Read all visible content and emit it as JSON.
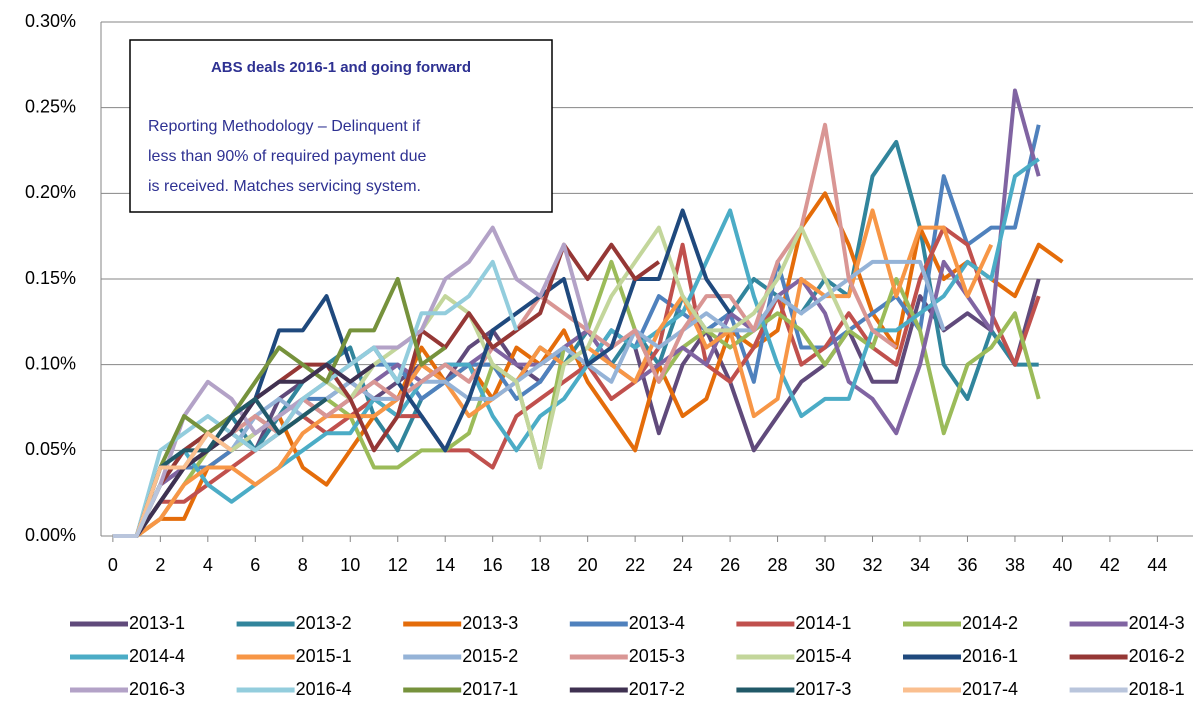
{
  "chart_data": {
    "type": "line",
    "annotation": {
      "title": "ABS deals 2016-1 and going forward",
      "lines": [
        "Reporting Methodology – Delinquent if",
        "less than 90% of required payment due",
        "is received. Matches servicing system."
      ]
    },
    "x": [
      0,
      1,
      2,
      3,
      4,
      5,
      6,
      7,
      8,
      9,
      10,
      11,
      12,
      13,
      14,
      15,
      16,
      17,
      18,
      19,
      20,
      21,
      22,
      23,
      24,
      25,
      26,
      27,
      28,
      29,
      30,
      31,
      32,
      33,
      34,
      35,
      36,
      37,
      38,
      39,
      40
    ],
    "xlim": [
      -0.5,
      45.5
    ],
    "xticks": [
      0,
      2,
      4,
      6,
      8,
      10,
      12,
      14,
      16,
      18,
      20,
      22,
      24,
      26,
      28,
      30,
      32,
      34,
      36,
      38,
      40,
      42,
      44
    ],
    "ylim": [
      0,
      0.3
    ],
    "yticks": [
      {
        "value": 0,
        "label": "0.00%"
      },
      {
        "value": 0.05,
        "label": "0.05%"
      },
      {
        "value": 0.1,
        "label": "0.10%"
      },
      {
        "value": 0.15,
        "label": "0.15%"
      },
      {
        "value": 0.2,
        "label": "0.20%"
      },
      {
        "value": 0.25,
        "label": "0.25%"
      },
      {
        "value": 0.3,
        "label": "0.30%"
      }
    ],
    "grid": true,
    "series": [
      {
        "name": "2013-1",
        "color": "#604a7b",
        "values": [
          0,
          0,
          0.03,
          0.04,
          0.05,
          0.06,
          0.05,
          0.08,
          0.09,
          0.1,
          0.09,
          0.08,
          0.09,
          0.1,
          0.09,
          0.11,
          0.12,
          0.1,
          0.09,
          0.11,
          0.1,
          0.12,
          0.11,
          0.06,
          0.1,
          0.12,
          0.09,
          0.05,
          0.07,
          0.09,
          0.1,
          0.12,
          0.09,
          0.09,
          0.14,
          0.12,
          0.13,
          0.12,
          0.1,
          0.15,
          null
        ]
      },
      {
        "name": "2013-2",
        "color": "#31859c",
        "values": [
          0,
          0,
          0.03,
          0.05,
          0.06,
          0.07,
          0.05,
          0.07,
          0.09,
          0.1,
          0.11,
          0.07,
          0.05,
          0.08,
          0.09,
          0.1,
          0.1,
          0.09,
          0.11,
          0.1,
          0.12,
          0.1,
          0.12,
          0.1,
          0.14,
          0.12,
          0.13,
          0.15,
          0.14,
          0.13,
          0.15,
          0.14,
          0.21,
          0.23,
          0.18,
          0.1,
          0.08,
          0.12,
          0.1,
          0.1,
          null
        ]
      },
      {
        "name": "2013-3",
        "color": "#e46c0a",
        "values": [
          0,
          0,
          0.01,
          0.01,
          0.04,
          0.05,
          0.06,
          0.07,
          0.04,
          0.03,
          0.05,
          0.07,
          0.08,
          0.11,
          0.09,
          0.1,
          0.08,
          0.11,
          0.1,
          0.12,
          0.09,
          0.07,
          0.05,
          0.1,
          0.07,
          0.08,
          0.12,
          0.11,
          0.12,
          0.18,
          0.2,
          0.17,
          0.13,
          0.11,
          0.18,
          0.15,
          0.16,
          0.15,
          0.14,
          0.17,
          0.16
        ]
      },
      {
        "name": "2013-4",
        "color": "#4f81bd",
        "values": [
          0,
          0,
          0.02,
          0.04,
          0.04,
          0.05,
          0.07,
          0.06,
          0.08,
          0.08,
          0.09,
          0.1,
          0.1,
          0.08,
          0.09,
          0.1,
          0.1,
          0.08,
          0.09,
          0.11,
          0.1,
          0.12,
          0.11,
          0.14,
          0.13,
          0.12,
          0.13,
          0.09,
          0.16,
          0.11,
          0.11,
          0.12,
          0.13,
          0.14,
          0.12,
          0.21,
          0.17,
          0.18,
          0.18,
          0.24,
          null
        ]
      },
      {
        "name": "2014-1",
        "color": "#c0504d",
        "values": [
          0,
          0,
          0.02,
          0.02,
          0.03,
          0.04,
          0.05,
          0.06,
          0.07,
          0.06,
          0.07,
          0.08,
          0.07,
          0.07,
          0.05,
          0.05,
          0.04,
          0.07,
          0.08,
          0.09,
          0.1,
          0.08,
          0.09,
          0.11,
          0.17,
          0.1,
          0.09,
          0.11,
          0.14,
          0.1,
          0.11,
          0.13,
          0.11,
          0.1,
          0.15,
          0.18,
          0.17,
          0.13,
          0.1,
          0.14,
          null
        ]
      },
      {
        "name": "2014-2",
        "color": "#9bbb59",
        "values": [
          0,
          0,
          0.01,
          0.03,
          0.05,
          0.06,
          0.07,
          0.06,
          0.07,
          0.08,
          0.07,
          0.04,
          0.04,
          0.05,
          0.05,
          0.06,
          0.1,
          0.09,
          0.04,
          0.11,
          0.12,
          0.16,
          0.12,
          0.09,
          0.11,
          0.12,
          0.11,
          0.12,
          0.13,
          0.12,
          0.1,
          0.12,
          0.11,
          0.15,
          0.12,
          0.06,
          0.1,
          0.11,
          0.13,
          0.08,
          null
        ]
      },
      {
        "name": "2014-3",
        "color": "#8064a2",
        "values": [
          0,
          0,
          0.03,
          0.04,
          0.06,
          0.05,
          0.06,
          0.07,
          0.08,
          0.07,
          0.08,
          0.09,
          0.1,
          0.09,
          0.1,
          0.1,
          0.11,
          0.1,
          0.1,
          0.11,
          0.12,
          0.1,
          0.09,
          0.1,
          0.11,
          0.1,
          0.13,
          0.12,
          0.14,
          0.15,
          0.13,
          0.09,
          0.08,
          0.06,
          0.1,
          0.16,
          0.14,
          0.12,
          0.26,
          0.21,
          null
        ]
      },
      {
        "name": "2014-4",
        "color": "#4bacc6",
        "values": [
          0,
          0,
          0.04,
          0.05,
          0.03,
          0.02,
          0.03,
          0.04,
          0.05,
          0.06,
          0.06,
          0.08,
          0.07,
          0.09,
          0.1,
          0.1,
          0.07,
          0.05,
          0.07,
          0.08,
          0.1,
          0.12,
          0.11,
          0.12,
          0.13,
          0.16,
          0.19,
          0.14,
          0.1,
          0.07,
          0.08,
          0.08,
          0.12,
          0.12,
          0.13,
          0.14,
          0.16,
          0.15,
          0.21,
          0.22,
          null
        ]
      },
      {
        "name": "2015-1",
        "color": "#f79646",
        "values": [
          0,
          0,
          0.01,
          0.03,
          0.04,
          0.04,
          0.03,
          0.04,
          0.06,
          0.07,
          0.07,
          0.07,
          0.08,
          0.1,
          0.09,
          0.07,
          0.08,
          0.09,
          0.11,
          0.1,
          0.11,
          0.1,
          0.09,
          0.12,
          0.14,
          0.11,
          0.12,
          0.07,
          0.08,
          0.15,
          0.14,
          0.14,
          0.19,
          0.14,
          0.18,
          0.18,
          0.14,
          0.17,
          null,
          null,
          null
        ]
      },
      {
        "name": "2015-2",
        "color": "#95b3d7",
        "values": [
          0,
          0,
          0.03,
          0.05,
          0.06,
          0.05,
          0.07,
          0.08,
          0.07,
          0.08,
          0.09,
          0.08,
          0.08,
          0.09,
          0.09,
          0.08,
          0.08,
          0.09,
          0.1,
          0.11,
          0.1,
          0.09,
          0.12,
          0.11,
          0.12,
          0.13,
          0.12,
          0.12,
          0.14,
          0.13,
          0.14,
          0.15,
          0.16,
          0.16,
          0.16,
          0.12,
          null,
          null,
          null,
          null,
          null
        ]
      },
      {
        "name": "2015-3",
        "color": "#d99694",
        "values": [
          0,
          0,
          0.02,
          0.04,
          0.05,
          0.06,
          0.07,
          0.06,
          0.08,
          0.07,
          0.08,
          0.09,
          0.08,
          0.09,
          0.1,
          0.09,
          0.11,
          0.12,
          0.14,
          0.13,
          0.12,
          0.11,
          0.12,
          0.09,
          0.12,
          0.14,
          0.14,
          0.12,
          0.16,
          0.18,
          0.24,
          0.15,
          0.12,
          0.11,
          null,
          null,
          null,
          null,
          null,
          null,
          null
        ]
      },
      {
        "name": "2015-4",
        "color": "#c3d69b",
        "values": [
          0,
          0,
          0.02,
          0.04,
          0.06,
          0.05,
          0.06,
          0.07,
          0.08,
          0.09,
          0.08,
          0.1,
          0.11,
          0.12,
          0.14,
          0.13,
          0.1,
          0.09,
          0.04,
          0.1,
          0.11,
          0.14,
          0.16,
          0.18,
          0.14,
          0.12,
          0.12,
          0.13,
          0.15,
          0.18,
          0.15,
          0.12,
          null,
          null,
          null,
          null,
          null,
          null,
          null,
          null,
          null
        ]
      },
      {
        "name": "2016-1",
        "color": "#1f497d",
        "values": [
          0,
          0,
          0.02,
          0.04,
          0.05,
          0.06,
          0.08,
          0.12,
          0.12,
          0.14,
          0.1,
          0.11,
          0.09,
          0.07,
          0.05,
          0.08,
          0.12,
          0.13,
          0.14,
          0.15,
          0.1,
          0.11,
          0.15,
          0.15,
          0.19,
          0.15,
          0.13,
          null,
          null,
          null,
          null,
          null,
          null,
          null,
          null,
          null,
          null,
          null,
          null,
          null,
          null
        ]
      },
      {
        "name": "2016-2",
        "color": "#953735",
        "values": [
          0,
          0,
          0.03,
          0.05,
          0.06,
          0.07,
          0.08,
          0.09,
          0.1,
          0.1,
          0.08,
          0.05,
          0.07,
          0.12,
          0.11,
          0.13,
          0.11,
          0.12,
          0.13,
          0.17,
          0.15,
          0.17,
          0.15,
          0.16,
          null,
          null,
          null,
          null,
          null,
          null,
          null,
          null,
          null,
          null,
          null,
          null,
          null,
          null,
          null,
          null,
          null
        ]
      },
      {
        "name": "2016-3",
        "color": "#b3a2c7",
        "values": [
          0,
          0,
          0.03,
          0.07,
          0.09,
          0.08,
          0.06,
          0.07,
          0.08,
          0.09,
          0.1,
          0.11,
          0.11,
          0.12,
          0.15,
          0.16,
          0.18,
          0.15,
          0.14,
          0.17,
          0.12,
          null,
          null,
          null,
          null,
          null,
          null,
          null,
          null,
          null,
          null,
          null,
          null,
          null,
          null,
          null,
          null,
          null,
          null,
          null,
          null
        ]
      },
      {
        "name": "2016-4",
        "color": "#93cddd",
        "values": [
          0,
          0,
          0.05,
          0.06,
          0.07,
          0.06,
          0.05,
          0.06,
          0.08,
          0.09,
          0.1,
          0.11,
          0.09,
          0.13,
          0.13,
          0.14,
          0.16,
          0.12,
          null,
          null,
          null,
          null,
          null,
          null,
          null,
          null,
          null,
          null,
          null,
          null,
          null,
          null,
          null,
          null,
          null,
          null,
          null,
          null,
          null,
          null,
          null
        ]
      },
      {
        "name": "2017-1",
        "color": "#76923c",
        "values": [
          0,
          0,
          0.04,
          0.07,
          0.06,
          0.07,
          0.09,
          0.11,
          0.1,
          0.09,
          0.12,
          0.12,
          0.15,
          0.1,
          0.11,
          null,
          null,
          null,
          null,
          null,
          null,
          null,
          null,
          null,
          null,
          null,
          null,
          null,
          null,
          null,
          null,
          null,
          null,
          null,
          null,
          null,
          null,
          null,
          null,
          null,
          null
        ]
      },
      {
        "name": "2017-2",
        "color": "#3f3151",
        "values": [
          0,
          0,
          0.02,
          0.04,
          0.05,
          0.06,
          0.08,
          0.09,
          0.09,
          0.1,
          0.09,
          0.1,
          null,
          null,
          null,
          null,
          null,
          null,
          null,
          null,
          null,
          null,
          null,
          null,
          null,
          null,
          null,
          null,
          null,
          null,
          null,
          null,
          null,
          null,
          null,
          null,
          null,
          null,
          null,
          null,
          null
        ]
      },
      {
        "name": "2017-3",
        "color": "#215968",
        "values": [
          0,
          0,
          0.04,
          0.05,
          0.05,
          0.07,
          0.08,
          0.06,
          0.07,
          0.08,
          null,
          null,
          null,
          null,
          null,
          null,
          null,
          null,
          null,
          null,
          null,
          null,
          null,
          null,
          null,
          null,
          null,
          null,
          null,
          null,
          null,
          null,
          null,
          null,
          null,
          null,
          null,
          null,
          null,
          null,
          null
        ]
      },
      {
        "name": "2017-4",
        "color": "#fabf8f",
        "values": [
          0,
          0,
          0.04,
          0.04,
          0.06,
          0.05,
          null,
          null,
          null,
          null,
          null,
          null,
          null,
          null,
          null,
          null,
          null,
          null,
          null,
          null,
          null,
          null,
          null,
          null,
          null,
          null,
          null,
          null,
          null,
          null,
          null,
          null,
          null,
          null,
          null,
          null,
          null,
          null,
          null,
          null,
          null
        ]
      },
      {
        "name": "2018-1",
        "color": "#b9c5dc",
        "values": [
          0,
          0,
          0.03,
          null,
          null,
          null,
          null,
          null,
          null,
          null,
          null,
          null,
          null,
          null,
          null,
          null,
          null,
          null,
          null,
          null,
          null,
          null,
          null,
          null,
          null,
          null,
          null,
          null,
          null,
          null,
          null,
          null,
          null,
          null,
          null,
          null,
          null,
          null,
          null,
          null,
          null
        ]
      }
    ]
  }
}
